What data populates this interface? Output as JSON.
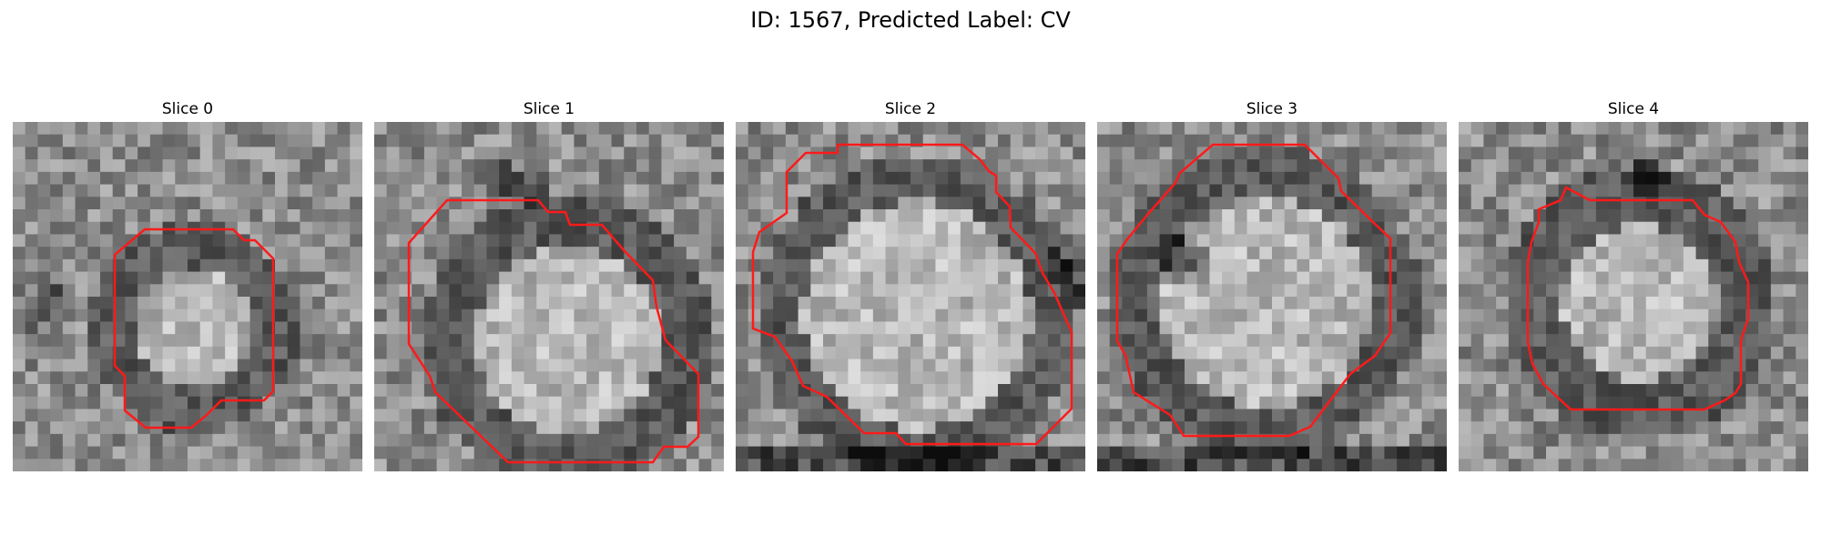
{
  "figure": {
    "title": "ID: 1567, Predicted Label: CV"
  },
  "colors": {
    "contour": "#ff1a1a"
  },
  "panels": [
    {
      "title": "Slice 0",
      "image": "grayscale-microscopy-slice-0"
    },
    {
      "title": "Slice 1",
      "image": "grayscale-microscopy-slice-1"
    },
    {
      "title": "Slice 2",
      "image": "grayscale-microscopy-slice-2"
    },
    {
      "title": "Slice 3",
      "image": "grayscale-microscopy-slice-3"
    },
    {
      "title": "Slice 4",
      "image": "grayscale-microscopy-slice-4"
    }
  ]
}
